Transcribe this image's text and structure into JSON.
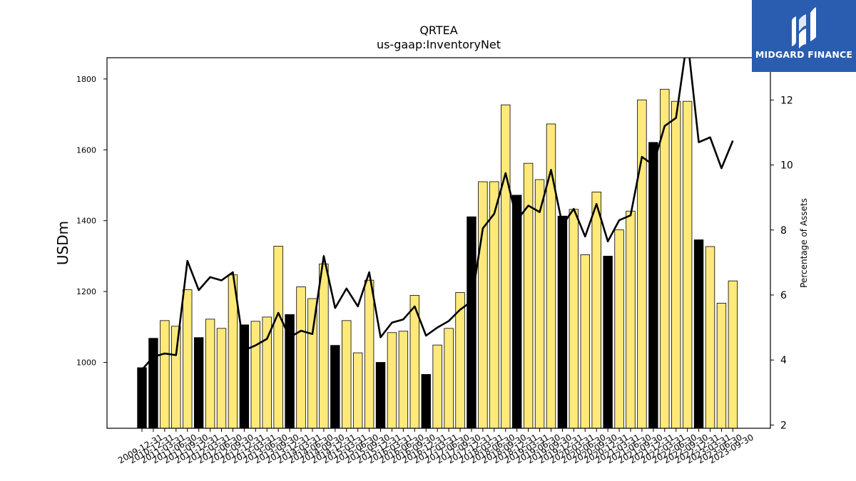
{
  "chart_data": {
    "type": "bar",
    "title": "QRTEA",
    "subtitle": "us-gaap:InventoryNet",
    "ylabel": "USDm",
    "y2label": "Percentage of Assets",
    "ylim": [
      814,
      1860
    ],
    "y2lim": [
      1.9,
      13.3
    ],
    "yticks": [
      1000,
      1200,
      1400,
      1600,
      1800
    ],
    "y2ticks": [
      2,
      4,
      6,
      8,
      10,
      12
    ],
    "categories": [
      "2009-12-31",
      "2010-12-31",
      "2011-03-31",
      "2011-06-30",
      "2011-09-30",
      "2011-12-31",
      "2012-03-31",
      "2012-06-30",
      "2012-09-30",
      "2012-12-31",
      "2013-03-31",
      "2013-06-30",
      "2013-09-30",
      "2013-12-31",
      "2014-03-31",
      "2014-06-30",
      "2014-09-30",
      "2014-12-31",
      "2015-03-31",
      "2015-06-30",
      "2015-09-30",
      "2015-12-31",
      "2016-03-31",
      "2016-06-30",
      "2016-09-30",
      "2016-12-31",
      "2017-03-31",
      "2017-06-30",
      "2017-09-30",
      "2017-12-31",
      "2018-03-31",
      "2018-06-30",
      "2018-09-30",
      "2018-12-31",
      "2019-03-31",
      "2019-06-30",
      "2019-09-30",
      "2019-12-31",
      "2020-03-31",
      "2020-06-30",
      "2020-09-30",
      "2020-12-31",
      "2021-03-31",
      "2021-06-30",
      "2021-09-30",
      "2021-12-31",
      "2022-03-31",
      "2022-06-30",
      "2022-09-30",
      "2022-12-31",
      "2023-03-31",
      "2023-06-30",
      "2023-09-30"
    ],
    "shown_tick_labels": [
      "2009-12-31",
      "2010-12-31",
      "2011-03-31",
      "2011-06-30",
      "2011-09-30",
      "2011-12-31",
      "2012-03-31",
      "2012-06-30",
      "2012-09-30",
      "2012-12-31",
      "2013-03-31",
      "2013-06-30",
      "2013-09-30",
      "2013-12-31",
      "2014-03-31",
      "2014-06-30",
      "2014-09-30",
      "2014-12-31",
      "2015-03-31",
      "2015-06-30",
      "2015-09-30",
      "2015-12-31",
      "2016-03-31",
      "2016-06-30",
      "2016-09-30",
      "2016-12-31",
      "2017-03-31",
      "2017-06-30",
      "2017-09-30",
      "2017-12-31",
      "2018-03-31",
      "2018-06-30",
      "2018-09-30",
      "2018-12-31",
      "2019-03-31",
      "2019-06-30",
      "2019-09-30",
      "2019-12-31",
      "2020-03-31",
      "2020-06-30",
      "2020-09-30",
      "2020-12-31",
      "2021-03-31",
      "2021-06-30",
      "2021-09-30",
      "2021-12-31",
      "2022-03-31",
      "2022-06-30",
      "2022-09-30",
      "2022-12-31",
      "2023-03-31",
      "2023-06-30",
      "2023-09-30"
    ],
    "series": [
      {
        "type": "bar",
        "values": [
          985,
          1068,
          1118,
          1102,
          1205,
          1070,
          1122,
          1096,
          1247,
          1106,
          1116,
          1128,
          1328,
          1135,
          1213,
          1180,
          1278,
          1048,
          1118,
          1027,
          1232,
          1000,
          1084,
          1088,
          1189,
          966,
          1049,
          1096,
          1197,
          1411,
          1510,
          1510,
          1727,
          1472,
          1562,
          1516,
          1673,
          1413,
          1432,
          1304,
          1481,
          1300,
          1374,
          1427,
          1741,
          1621,
          1771,
          1737,
          1737,
          1346,
          1327,
          1167,
          1230
        ]
      },
      {
        "type": "line",
        "values": [
          3.7,
          4.1,
          4.2,
          4.15,
          7.05,
          6.15,
          6.55,
          6.45,
          6.7,
          4.3,
          4.45,
          4.65,
          5.45,
          4.7,
          4.9,
          4.8,
          7.2,
          5.6,
          6.2,
          5.65,
          6.7,
          4.7,
          5.15,
          5.25,
          5.65,
          4.75,
          5.0,
          5.2,
          5.55,
          5.8,
          8.05,
          8.5,
          9.75,
          8.3,
          8.75,
          8.55,
          9.85,
          8.15,
          8.65,
          7.8,
          8.8,
          7.65,
          8.3,
          8.45,
          10.25,
          10.0,
          11.2,
          11.45,
          13.9,
          10.7,
          10.85,
          9.9,
          10.75
        ]
      }
    ],
    "bar_colors": {
      "year_end": "#000000",
      "quarter": "#ffe97a"
    },
    "line_color": "#000000",
    "grid": false,
    "legend": "none"
  },
  "logo": {
    "text": "MIDGARD FINANCE",
    "bg_color": "#2a5db0",
    "fg_color": "#ffffff"
  }
}
